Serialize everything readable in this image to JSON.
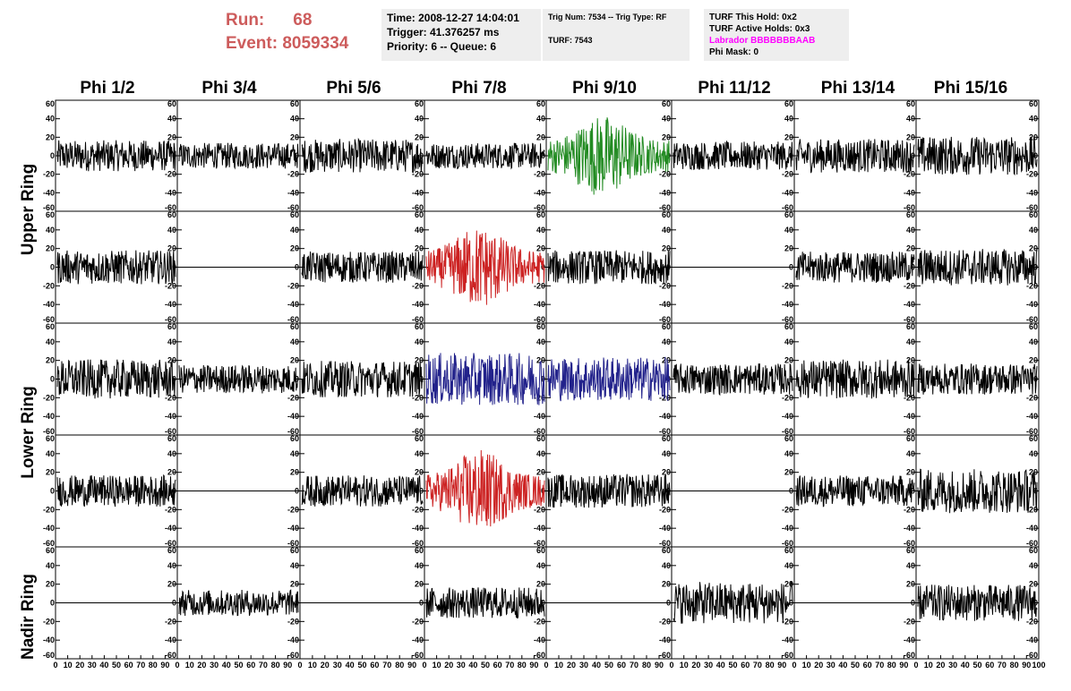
{
  "header": {
    "run_label": "Run:",
    "run_value": "68",
    "event_label": "Event:",
    "event_value": "8059334",
    "time": "Time: 2008-12-27 14:04:01",
    "trigger": "Trigger: 41.376257 ms",
    "priority": "Priority: 6 -- Queue: 6",
    "trig_num": "Trig Num: 7534 -- Trig Type: RF",
    "turf": "TURF: 7543",
    "turf_this_hold": "TURF This Hold: 0x2",
    "turf_active_holds": "TURF Active Holds: 0x3",
    "labrador": "Labrador BBBBBBBAAB",
    "phi_mask": "Phi Mask: 0"
  },
  "columns": [
    "Phi 1/2",
    "Phi 3/4",
    "Phi 5/6",
    "Phi 7/8",
    "Phi 9/10",
    "Phi 11/12",
    "Phi 13/14",
    "Phi 15/16"
  ],
  "rows": [
    "Upper Ring",
    "Upper Ring",
    "Lower Ring",
    "Lower Ring",
    "Nadir Ring"
  ],
  "ring_labels": [
    "Upper Ring",
    "Lower Ring",
    "Nadir Ring"
  ],
  "colors": {
    "run_text": "#cd5c5c",
    "labrador": "#ff00ff",
    "green": "#228b22",
    "red": "#cc2222",
    "blue": "#22228b",
    "black": "#000000"
  },
  "chart_data": {
    "type": "line",
    "ylim": [
      -60,
      60
    ],
    "yticks": [
      -60,
      -40,
      -20,
      0,
      20,
      40,
      60
    ],
    "xlim": [
      0,
      100
    ],
    "xticks": [
      0,
      10,
      20,
      30,
      40,
      50,
      60,
      70,
      80,
      90,
      100
    ],
    "panels": [
      {
        "row": 0,
        "col": 0,
        "color": "black",
        "amp": 12,
        "flat": false
      },
      {
        "row": 0,
        "col": 1,
        "color": "black",
        "amp": 10,
        "flat": false
      },
      {
        "row": 0,
        "col": 2,
        "color": "black",
        "amp": 13,
        "flat": false
      },
      {
        "row": 0,
        "col": 3,
        "color": "black",
        "amp": 10,
        "flat": false
      },
      {
        "row": 0,
        "col": 4,
        "color": "green",
        "amp": 22,
        "flat": false
      },
      {
        "row": 0,
        "col": 5,
        "color": "black",
        "amp": 11,
        "flat": false
      },
      {
        "row": 0,
        "col": 6,
        "color": "black",
        "amp": 13,
        "flat": false
      },
      {
        "row": 0,
        "col": 7,
        "color": "black",
        "amp": 15,
        "flat": false
      },
      {
        "row": 1,
        "col": 0,
        "color": "black",
        "amp": 13,
        "flat": false
      },
      {
        "row": 1,
        "col": 1,
        "color": "black",
        "amp": 0,
        "flat": true
      },
      {
        "row": 1,
        "col": 2,
        "color": "black",
        "amp": 12,
        "flat": false
      },
      {
        "row": 1,
        "col": 3,
        "color": "red",
        "amp": 22,
        "flat": false
      },
      {
        "row": 1,
        "col": 4,
        "color": "black",
        "amp": 13,
        "flat": false
      },
      {
        "row": 1,
        "col": 5,
        "color": "black",
        "amp": 0,
        "flat": true
      },
      {
        "row": 1,
        "col": 6,
        "color": "black",
        "amp": 12,
        "flat": false
      },
      {
        "row": 1,
        "col": 7,
        "color": "black",
        "amp": 14,
        "flat": false
      },
      {
        "row": 2,
        "col": 0,
        "color": "black",
        "amp": 15,
        "flat": false
      },
      {
        "row": 2,
        "col": 1,
        "color": "black",
        "amp": 11,
        "flat": false
      },
      {
        "row": 2,
        "col": 2,
        "color": "black",
        "amp": 14,
        "flat": false
      },
      {
        "row": 2,
        "col": 3,
        "color": "blue",
        "amp": 20,
        "flat": false
      },
      {
        "row": 2,
        "col": 4,
        "color": "blue",
        "amp": 17,
        "flat": false
      },
      {
        "row": 2,
        "col": 5,
        "color": "black",
        "amp": 12,
        "flat": false
      },
      {
        "row": 2,
        "col": 6,
        "color": "black",
        "amp": 15,
        "flat": false
      },
      {
        "row": 2,
        "col": 7,
        "color": "black",
        "amp": 12,
        "flat": false
      },
      {
        "row": 3,
        "col": 0,
        "color": "black",
        "amp": 12,
        "flat": false
      },
      {
        "row": 3,
        "col": 1,
        "color": "black",
        "amp": 0,
        "flat": true
      },
      {
        "row": 3,
        "col": 2,
        "color": "black",
        "amp": 12,
        "flat": false
      },
      {
        "row": 3,
        "col": 3,
        "color": "red",
        "amp": 22,
        "flat": false
      },
      {
        "row": 3,
        "col": 4,
        "color": "black",
        "amp": 13,
        "flat": false
      },
      {
        "row": 3,
        "col": 5,
        "color": "black",
        "amp": 0,
        "flat": true
      },
      {
        "row": 3,
        "col": 6,
        "color": "black",
        "amp": 12,
        "flat": false
      },
      {
        "row": 3,
        "col": 7,
        "color": "black",
        "amp": 17,
        "flat": false
      },
      {
        "row": 4,
        "col": 0,
        "color": "black",
        "amp": 0,
        "flat": true
      },
      {
        "row": 4,
        "col": 1,
        "color": "black",
        "amp": 10,
        "flat": false
      },
      {
        "row": 4,
        "col": 2,
        "color": "black",
        "amp": 0,
        "flat": true
      },
      {
        "row": 4,
        "col": 3,
        "color": "black",
        "amp": 12,
        "flat": false
      },
      {
        "row": 4,
        "col": 4,
        "color": "black",
        "amp": 0,
        "flat": true
      },
      {
        "row": 4,
        "col": 5,
        "color": "black",
        "amp": 16,
        "flat": false
      },
      {
        "row": 4,
        "col": 6,
        "color": "black",
        "amp": 0,
        "flat": true
      },
      {
        "row": 4,
        "col": 7,
        "color": "black",
        "amp": 14,
        "flat": false
      }
    ]
  }
}
